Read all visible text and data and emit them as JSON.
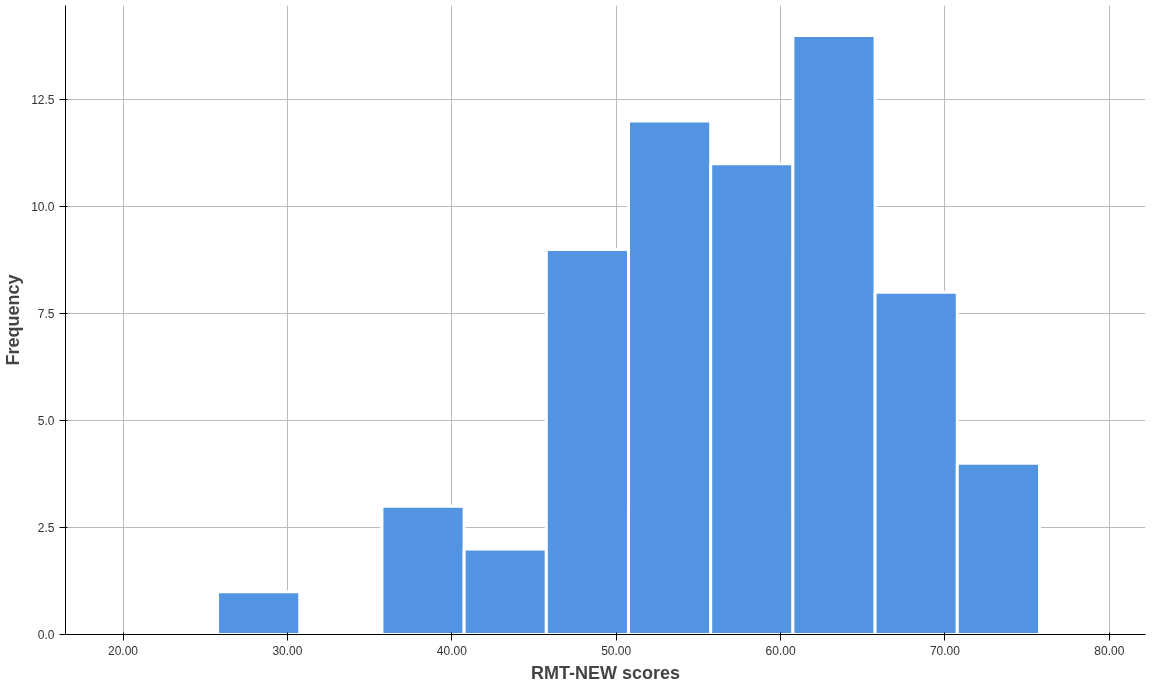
{
  "chart_data": {
    "type": "histogram",
    "xlabel": "RMT-NEW scores",
    "ylabel": "Frequency",
    "bins": [
      25.75,
      30.75,
      35.75,
      40.75,
      45.75,
      50.75,
      55.75,
      60.75,
      65.75,
      70.75,
      75.75
    ],
    "values": [
      1,
      0,
      3,
      2,
      9,
      12,
      11,
      14,
      8,
      4
    ],
    "color": "#5294e2",
    "xlim": [
      16.5,
      82.2
    ],
    "ylim": [
      0,
      14.7
    ],
    "xticks": [
      {
        "value": 20,
        "label": "20.00"
      },
      {
        "value": 30,
        "label": "30.00"
      },
      {
        "value": 40,
        "label": "40.00"
      },
      {
        "value": 50,
        "label": "50.00"
      },
      {
        "value": 60,
        "label": "60.00"
      },
      {
        "value": 70,
        "label": "70.00"
      },
      {
        "value": 80,
        "label": "80.00"
      }
    ],
    "yticks": [
      {
        "value": 0,
        "label": "0.0"
      },
      {
        "value": 2.5,
        "label": "2.5"
      },
      {
        "value": 5,
        "label": "5.0"
      },
      {
        "value": 7.5,
        "label": "7.5"
      },
      {
        "value": 10,
        "label": "10.0"
      },
      {
        "value": 12.5,
        "label": "12.5"
      }
    ],
    "grid": true
  }
}
